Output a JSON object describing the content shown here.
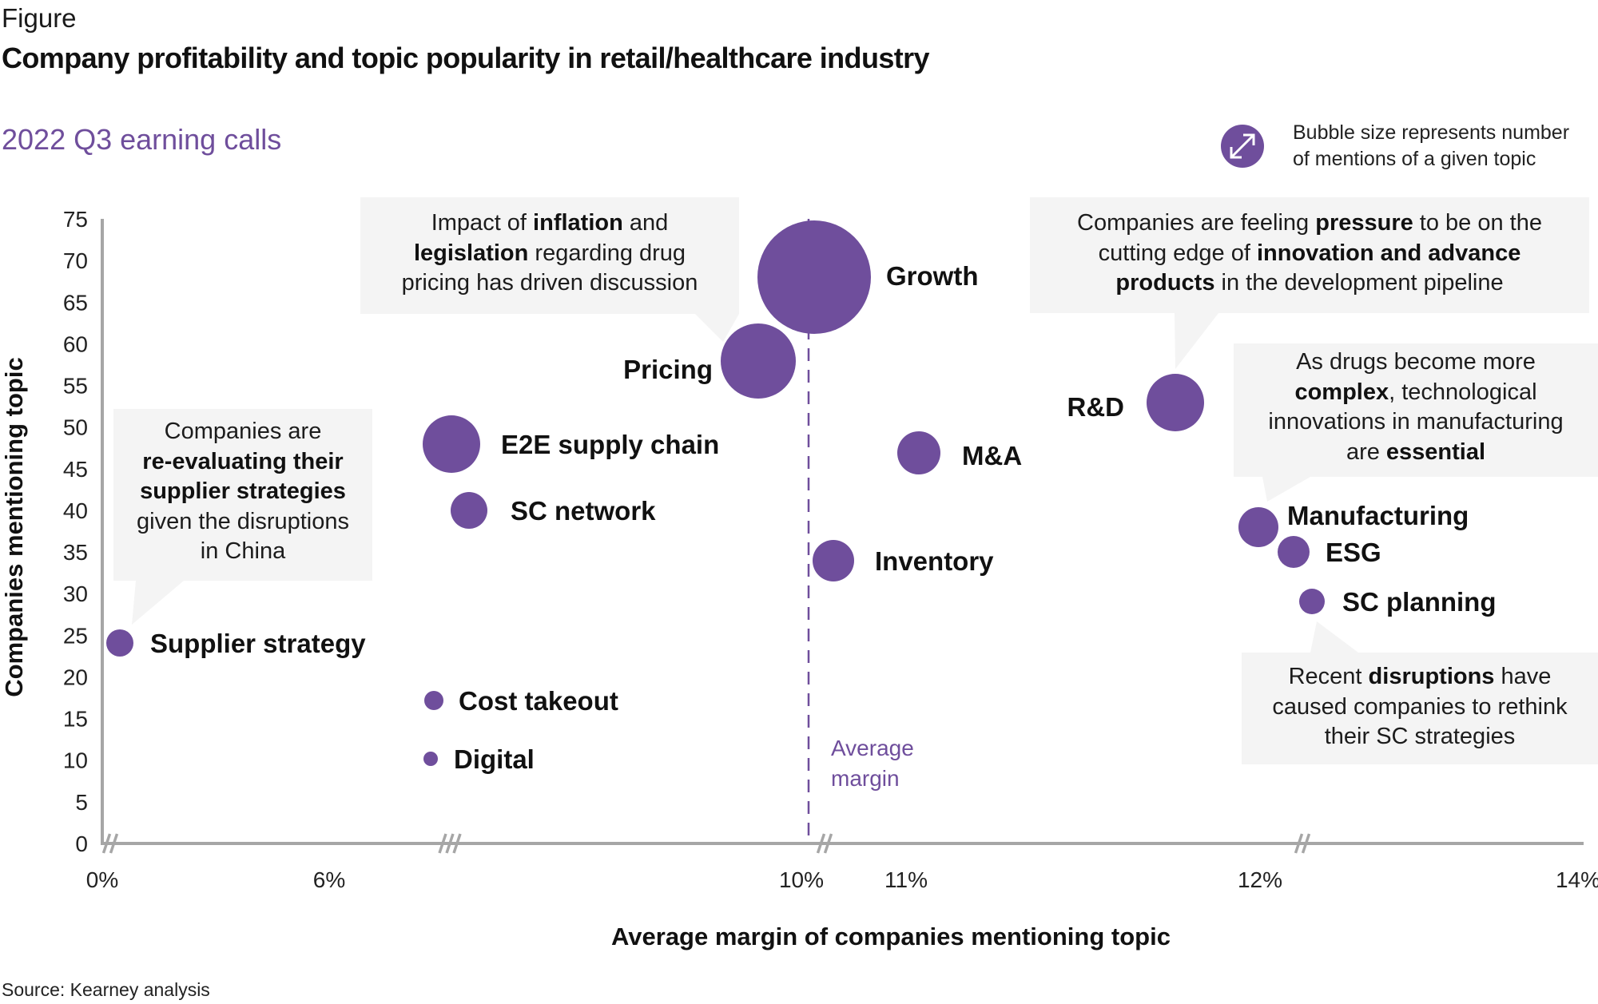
{
  "header": {
    "label": "Figure",
    "title": "Company profitability and topic popularity in retail/healthcare industry",
    "subtitle": "2022 Q3 earning calls"
  },
  "legend": {
    "icon": "resize-arrows-icon",
    "line1": "Bubble size represents number",
    "line2": "of mentions of a given topic"
  },
  "colors": {
    "bubble": "#6f4e9c",
    "axis": "#a6a6a6",
    "callout_bg": "#f4f4f4",
    "accent_text": "#6f4e9c"
  },
  "callouts": [
    {
      "id": "supplier",
      "segments": [
        [
          "Companies are",
          false
        ],
        [
          "\n",
          false
        ],
        [
          "re-evaluating their",
          true
        ],
        [
          "\n",
          false
        ],
        [
          "supplier strategies",
          true
        ],
        [
          "\n",
          false
        ],
        [
          "given the disruptions",
          false
        ],
        [
          "\n",
          false
        ],
        [
          "in China",
          false
        ]
      ]
    },
    {
      "id": "pricing",
      "segments": [
        [
          "Impact of ",
          false
        ],
        [
          "inflation",
          true
        ],
        [
          " and",
          false
        ],
        [
          "\n",
          false
        ],
        [
          "legislation",
          true
        ],
        [
          " regarding drug",
          false
        ],
        [
          "\n",
          false
        ],
        [
          "pricing has driven discussion",
          false
        ]
      ]
    },
    {
      "id": "rnd",
      "segments": [
        [
          "Companies are feeling ",
          false
        ],
        [
          "pressure",
          true
        ],
        [
          " to be on the",
          false
        ],
        [
          "\n",
          false
        ],
        [
          "cutting edge of ",
          false
        ],
        [
          "innovation and advance",
          true
        ],
        [
          "\n",
          false
        ],
        [
          "products",
          true
        ],
        [
          " in the development pipeline",
          false
        ]
      ]
    },
    {
      "id": "manufacturing",
      "segments": [
        [
          "As drugs become more",
          false
        ],
        [
          "\n",
          false
        ],
        [
          "complex",
          true
        ],
        [
          ", technological",
          false
        ],
        [
          "\n",
          false
        ],
        [
          "innovations in manufacturing",
          false
        ],
        [
          "\n",
          false
        ],
        [
          "are ",
          false
        ],
        [
          "essential",
          true
        ]
      ]
    },
    {
      "id": "scplanning",
      "segments": [
        [
          "Recent ",
          false
        ],
        [
          "disruptions",
          true
        ],
        [
          " have",
          false
        ],
        [
          "\n",
          false
        ],
        [
          "caused companies to rethink",
          false
        ],
        [
          "\n",
          false
        ],
        [
          "their SC strategies",
          false
        ]
      ]
    }
  ],
  "footer": {
    "source": "Source: Kearney analysis"
  },
  "chart_data": {
    "type": "scatter",
    "subtype": "bubble",
    "title": "Company profitability and topic popularity in retail/healthcare industry",
    "subtitle": "2022 Q3 earning calls",
    "xlabel": "Average margin of companies mentioning topic",
    "ylabel": "Companies mentioning topic",
    "x_ticks": [
      {
        "value": 0,
        "label": "0%"
      },
      {
        "value": 6,
        "label": "6%"
      },
      {
        "value": 10,
        "label": "10%"
      },
      {
        "value": 11,
        "label": "11%"
      },
      {
        "value": 12,
        "label": "12%"
      },
      {
        "value": 14,
        "label": "14%"
      }
    ],
    "x_axis_note": "broken (non-linear) axis with break marks",
    "y_ticks": [
      0,
      5,
      10,
      15,
      20,
      25,
      30,
      35,
      40,
      45,
      50,
      55,
      60,
      65,
      70,
      75
    ],
    "ylim": [
      0,
      75
    ],
    "xlim": [
      0,
      14
    ],
    "reference_line": {
      "x": 10.0,
      "label_line1": "Average",
      "label_line2": "margin",
      "style": "dashed"
    },
    "size_legend": "Bubble size represents number of mentions of a given topic",
    "points": [
      {
        "name": "Supplier strategy",
        "x": 0.2,
        "y": 24.5,
        "size": 17,
        "label_side": "right"
      },
      {
        "name": "E2E supply chain",
        "x": 7.45,
        "y": 48,
        "size": 36,
        "label_side": "right"
      },
      {
        "name": "SC network",
        "x": 7.55,
        "y": 40,
        "size": 23,
        "label_side": "right"
      },
      {
        "name": "Cost takeout",
        "x": 7.4,
        "y": 17.5,
        "size": 12,
        "label_side": "right"
      },
      {
        "name": "Digital",
        "x": 7.38,
        "y": 10,
        "size": 9,
        "label_side": "right"
      },
      {
        "name": "Pricing",
        "x": 9.85,
        "y": 58,
        "size": 47,
        "label_side": "left"
      },
      {
        "name": "Growth",
        "x": 10.05,
        "y": 68,
        "size": 71,
        "label_side": "right"
      },
      {
        "name": "Inventory",
        "x": 10.25,
        "y": 34,
        "size": 26,
        "label_side": "right"
      },
      {
        "name": "M&A",
        "x": 11.05,
        "y": 47,
        "size": 27,
        "label_side": "right"
      },
      {
        "name": "R&D",
        "x": 11.7,
        "y": 53,
        "size": 36,
        "label_side": "left"
      },
      {
        "name": "Manufacturing",
        "x": 11.98,
        "y": 38,
        "size": 25,
        "label_side": "right"
      },
      {
        "name": "ESG",
        "x": 12.1,
        "y": 35.5,
        "size": 20,
        "label_side": "right"
      },
      {
        "name": "SC planning",
        "x": 12.18,
        "y": 29.5,
        "size": 16,
        "label_side": "right"
      }
    ],
    "legend": "top-right",
    "grid": false
  }
}
